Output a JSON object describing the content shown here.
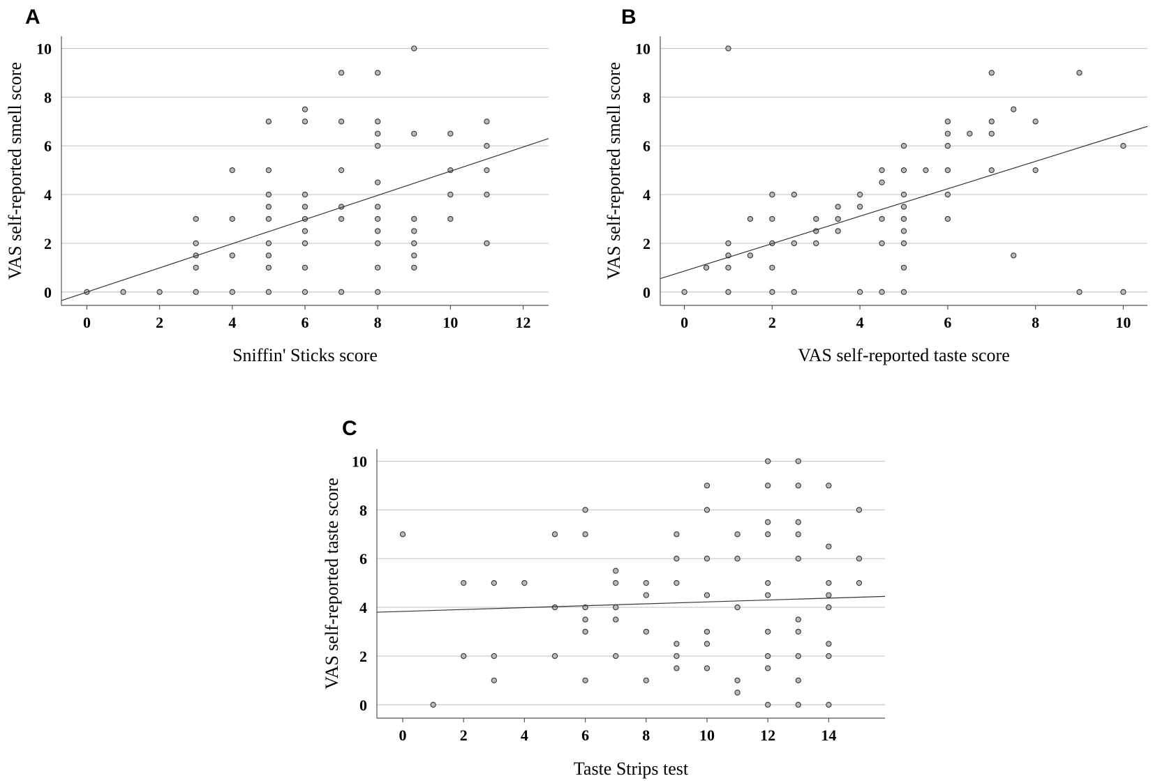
{
  "chart_data": [
    {
      "id": "A",
      "type": "scatter",
      "panel_label": "A",
      "xlabel": "Sniffin' Sticks score",
      "ylabel": "VAS self-reported smell score",
      "xlim": [
        -0.7,
        12.7
      ],
      "ylim": [
        -0.55,
        10.5
      ],
      "xticks": [
        0,
        2,
        4,
        6,
        8,
        10,
        12
      ],
      "yticks": [
        0,
        2,
        4,
        6,
        8,
        10
      ],
      "fit_line": {
        "x": [
          -0.7,
          12.7
        ],
        "y": [
          -0.35,
          6.3
        ]
      },
      "points": [
        [
          0,
          0
        ],
        [
          1,
          0
        ],
        [
          2,
          0
        ],
        [
          3,
          0
        ],
        [
          3,
          1
        ],
        [
          3,
          1.5
        ],
        [
          3,
          2
        ],
        [
          3,
          3
        ],
        [
          4,
          0
        ],
        [
          4,
          1.5
        ],
        [
          4,
          3
        ],
        [
          4,
          5
        ],
        [
          5,
          0
        ],
        [
          5,
          1
        ],
        [
          5,
          1.5
        ],
        [
          5,
          2
        ],
        [
          5,
          3
        ],
        [
          5,
          3.5
        ],
        [
          5,
          4
        ],
        [
          5,
          5
        ],
        [
          5,
          7
        ],
        [
          6,
          0
        ],
        [
          6,
          1
        ],
        [
          6,
          2
        ],
        [
          6,
          2.5
        ],
        [
          6,
          3
        ],
        [
          6,
          3.5
        ],
        [
          6,
          4
        ],
        [
          6,
          7
        ],
        [
          6,
          7.5
        ],
        [
          7,
          0
        ],
        [
          7,
          3
        ],
        [
          7,
          3.5
        ],
        [
          7,
          5
        ],
        [
          7,
          7
        ],
        [
          7,
          9
        ],
        [
          8,
          0
        ],
        [
          8,
          1
        ],
        [
          8,
          2
        ],
        [
          8,
          2.5
        ],
        [
          8,
          3
        ],
        [
          8,
          3.5
        ],
        [
          8,
          4.5
        ],
        [
          8,
          6
        ],
        [
          8,
          6.5
        ],
        [
          8,
          7
        ],
        [
          8,
          9
        ],
        [
          9,
          1
        ],
        [
          9,
          1.5
        ],
        [
          9,
          2
        ],
        [
          9,
          2.5
        ],
        [
          9,
          3
        ],
        [
          9,
          6.5
        ],
        [
          9,
          10
        ],
        [
          10,
          3
        ],
        [
          10,
          4
        ],
        [
          10,
          5
        ],
        [
          10,
          6.5
        ],
        [
          11,
          2
        ],
        [
          11,
          4
        ],
        [
          11,
          5
        ],
        [
          11,
          6
        ],
        [
          11,
          7
        ]
      ]
    },
    {
      "id": "B",
      "type": "scatter",
      "panel_label": "B",
      "xlabel": "VAS self-reported taste score",
      "ylabel": "VAS self-reported smell score",
      "xlim": [
        -0.55,
        10.55
      ],
      "ylim": [
        -0.55,
        10.5
      ],
      "xticks": [
        0,
        2,
        4,
        6,
        8,
        10
      ],
      "yticks": [
        0,
        2,
        4,
        6,
        8,
        10
      ],
      "fit_line": {
        "x": [
          -0.55,
          10.55
        ],
        "y": [
          0.55,
          6.8
        ]
      },
      "points": [
        [
          0,
          0
        ],
        [
          0.5,
          1
        ],
        [
          1,
          0
        ],
        [
          1,
          1
        ],
        [
          1,
          1.5
        ],
        [
          1,
          2
        ],
        [
          1,
          10
        ],
        [
          1.5,
          1.5
        ],
        [
          1.5,
          3
        ],
        [
          2,
          0
        ],
        [
          2,
          1
        ],
        [
          2,
          2
        ],
        [
          2,
          3
        ],
        [
          2,
          4
        ],
        [
          2.5,
          0
        ],
        [
          2.5,
          2
        ],
        [
          2.5,
          4
        ],
        [
          3,
          2
        ],
        [
          3,
          2.5
        ],
        [
          3,
          3
        ],
        [
          3.5,
          2.5
        ],
        [
          3.5,
          3
        ],
        [
          3.5,
          3.5
        ],
        [
          4,
          0
        ],
        [
          4,
          3.5
        ],
        [
          4,
          4
        ],
        [
          4.5,
          0
        ],
        [
          4.5,
          2
        ],
        [
          4.5,
          3
        ],
        [
          4.5,
          4.5
        ],
        [
          4.5,
          5
        ],
        [
          5,
          0
        ],
        [
          5,
          1
        ],
        [
          5,
          2
        ],
        [
          5,
          2.5
        ],
        [
          5,
          3
        ],
        [
          5,
          3.5
        ],
        [
          5,
          4
        ],
        [
          5,
          5
        ],
        [
          5,
          6
        ],
        [
          5.5,
          5
        ],
        [
          6,
          3
        ],
        [
          6,
          4
        ],
        [
          6,
          5
        ],
        [
          6,
          6
        ],
        [
          6,
          6.5
        ],
        [
          6,
          7
        ],
        [
          6.5,
          6.5
        ],
        [
          7,
          5
        ],
        [
          7,
          6.5
        ],
        [
          7,
          7
        ],
        [
          7,
          9
        ],
        [
          7.5,
          1.5
        ],
        [
          7.5,
          7.5
        ],
        [
          8,
          5
        ],
        [
          8,
          7
        ],
        [
          9,
          0
        ],
        [
          9,
          9
        ],
        [
          10,
          0
        ],
        [
          10,
          6
        ]
      ]
    },
    {
      "id": "C",
      "type": "scatter",
      "panel_label": "C",
      "xlabel": "Taste Strips test",
      "ylabel": "VAS self-reported taste score",
      "xlim": [
        -0.85,
        15.85
      ],
      "ylim": [
        -0.55,
        10.5
      ],
      "xticks": [
        0,
        2,
        4,
        6,
        8,
        10,
        12,
        14
      ],
      "yticks": [
        0,
        2,
        4,
        6,
        8,
        10
      ],
      "fit_line": {
        "x": [
          -0.85,
          15.85
        ],
        "y": [
          3.8,
          4.45
        ]
      },
      "points": [
        [
          0,
          7
        ],
        [
          1,
          0
        ],
        [
          2,
          2
        ],
        [
          2,
          5
        ],
        [
          3,
          1
        ],
        [
          3,
          2
        ],
        [
          3,
          5
        ],
        [
          4,
          5
        ],
        [
          5,
          2
        ],
        [
          5,
          4
        ],
        [
          5,
          7
        ],
        [
          6,
          1
        ],
        [
          6,
          3
        ],
        [
          6,
          3.5
        ],
        [
          6,
          4
        ],
        [
          6,
          7
        ],
        [
          6,
          8
        ],
        [
          7,
          2
        ],
        [
          7,
          3.5
        ],
        [
          7,
          4
        ],
        [
          7,
          5
        ],
        [
          7,
          5.5
        ],
        [
          8,
          1
        ],
        [
          8,
          3
        ],
        [
          8,
          4.5
        ],
        [
          8,
          5
        ],
        [
          9,
          1.5
        ],
        [
          9,
          2
        ],
        [
          9,
          2.5
        ],
        [
          9,
          5
        ],
        [
          9,
          6
        ],
        [
          9,
          7
        ],
        [
          10,
          1.5
        ],
        [
          10,
          2.5
        ],
        [
          10,
          3
        ],
        [
          10,
          4.5
        ],
        [
          10,
          6
        ],
        [
          10,
          8
        ],
        [
          10,
          9
        ],
        [
          11,
          0.5
        ],
        [
          11,
          1
        ],
        [
          11,
          4
        ],
        [
          11,
          6
        ],
        [
          11,
          7
        ],
        [
          12,
          0
        ],
        [
          12,
          1.5
        ],
        [
          12,
          2
        ],
        [
          12,
          3
        ],
        [
          12,
          4.5
        ],
        [
          12,
          5
        ],
        [
          12,
          7
        ],
        [
          12,
          7.5
        ],
        [
          12,
          9
        ],
        [
          12,
          10
        ],
        [
          13,
          0
        ],
        [
          13,
          1
        ],
        [
          13,
          2
        ],
        [
          13,
          3
        ],
        [
          13,
          3.5
        ],
        [
          13,
          6
        ],
        [
          13,
          7
        ],
        [
          13,
          7.5
        ],
        [
          13,
          9
        ],
        [
          13,
          10
        ],
        [
          14,
          0
        ],
        [
          14,
          2
        ],
        [
          14,
          2.5
        ],
        [
          14,
          4
        ],
        [
          14,
          4.5
        ],
        [
          14,
          5
        ],
        [
          14,
          6.5
        ],
        [
          14,
          9
        ],
        [
          15,
          5
        ],
        [
          15,
          6
        ],
        [
          15,
          8
        ]
      ]
    }
  ]
}
